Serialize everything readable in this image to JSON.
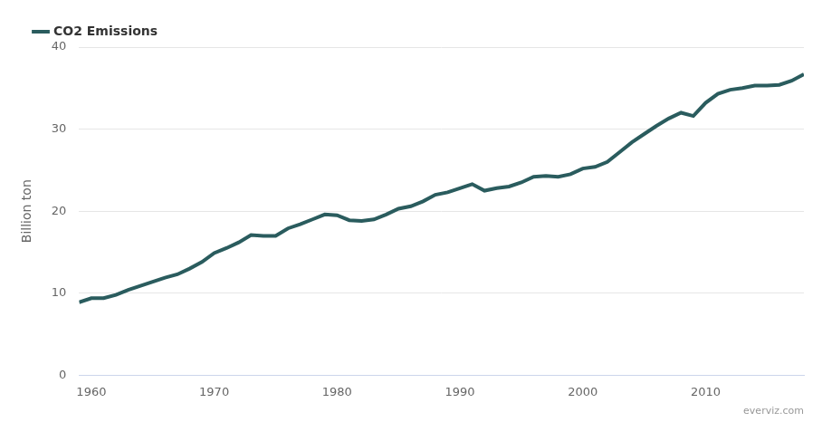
{
  "chart_data": {
    "type": "line",
    "y_label": "Billion ton",
    "source": "everviz.com",
    "x": [
      1959,
      1960,
      1961,
      1962,
      1963,
      1964,
      1965,
      1966,
      1967,
      1968,
      1969,
      1970,
      1971,
      1972,
      1973,
      1974,
      1975,
      1976,
      1977,
      1978,
      1979,
      1980,
      1981,
      1982,
      1983,
      1984,
      1985,
      1986,
      1987,
      1988,
      1989,
      1990,
      1991,
      1992,
      1993,
      1994,
      1995,
      1996,
      1997,
      1998,
      1999,
      2000,
      2001,
      2002,
      2003,
      2004,
      2005,
      2006,
      2007,
      2008,
      2009,
      2010,
      2011,
      2012,
      2013,
      2014,
      2015,
      2016,
      2017,
      2018
    ],
    "series": [
      {
        "name": "CO2 Emissions",
        "color": "#2a5c5e",
        "values": [
          8.9,
          9.4,
          9.4,
          9.8,
          10.4,
          10.9,
          11.4,
          11.9,
          12.3,
          13.0,
          13.8,
          14.9,
          15.5,
          16.2,
          17.1,
          17.0,
          17.0,
          17.9,
          18.4,
          19.0,
          19.6,
          19.5,
          18.9,
          18.8,
          19.0,
          19.6,
          20.3,
          20.6,
          21.2,
          22.0,
          22.3,
          22.8,
          23.3,
          22.5,
          22.8,
          23.0,
          23.5,
          24.2,
          24.3,
          24.2,
          24.5,
          25.2,
          25.4,
          26.0,
          27.2,
          28.4,
          29.4,
          30.4,
          31.3,
          32.0,
          31.6,
          33.2,
          34.3,
          34.8,
          35.0,
          35.3,
          35.3,
          35.4,
          35.9,
          36.7
        ]
      }
    ],
    "xlim": [
      1959,
      2018
    ],
    "xticks": [
      1960,
      1970,
      1980,
      1990,
      2000,
      2010
    ],
    "ylim": [
      0,
      40
    ],
    "yticks": [
      0,
      10,
      20,
      30,
      40
    ],
    "grid": true,
    "legend": "top-left"
  }
}
